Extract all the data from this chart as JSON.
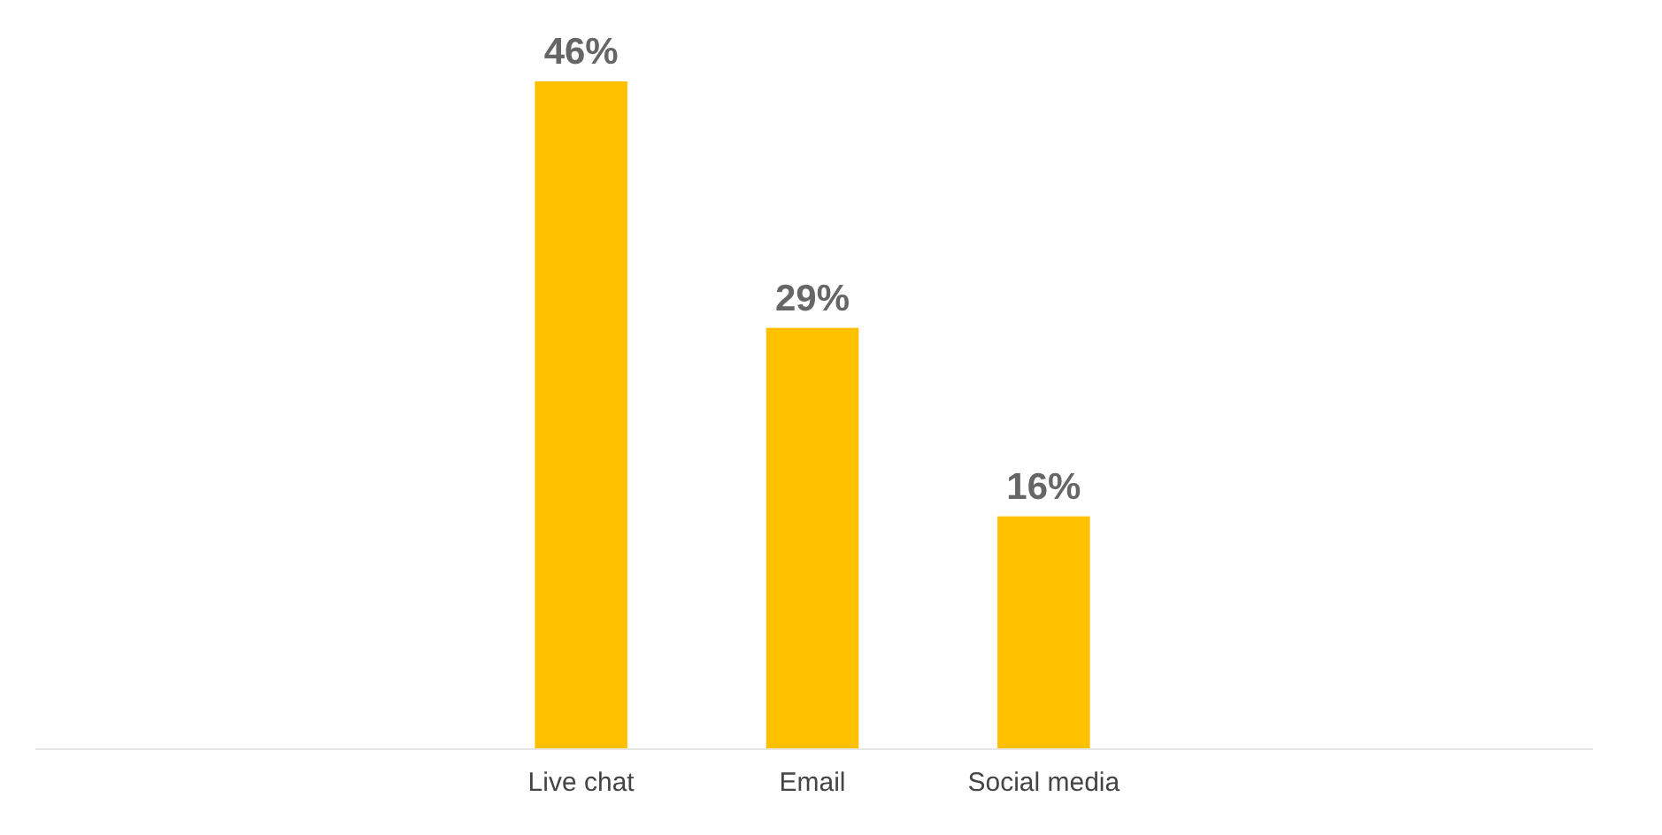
{
  "chart_data": {
    "type": "bar",
    "categories": [
      "Live chat",
      "Email",
      "Social media"
    ],
    "values": [
      46,
      29,
      16
    ],
    "value_labels": [
      "46%",
      "29%",
      "16%"
    ],
    "color": "#ffc000",
    "tick_labels": "x",
    "grid": false,
    "legend": false
  }
}
